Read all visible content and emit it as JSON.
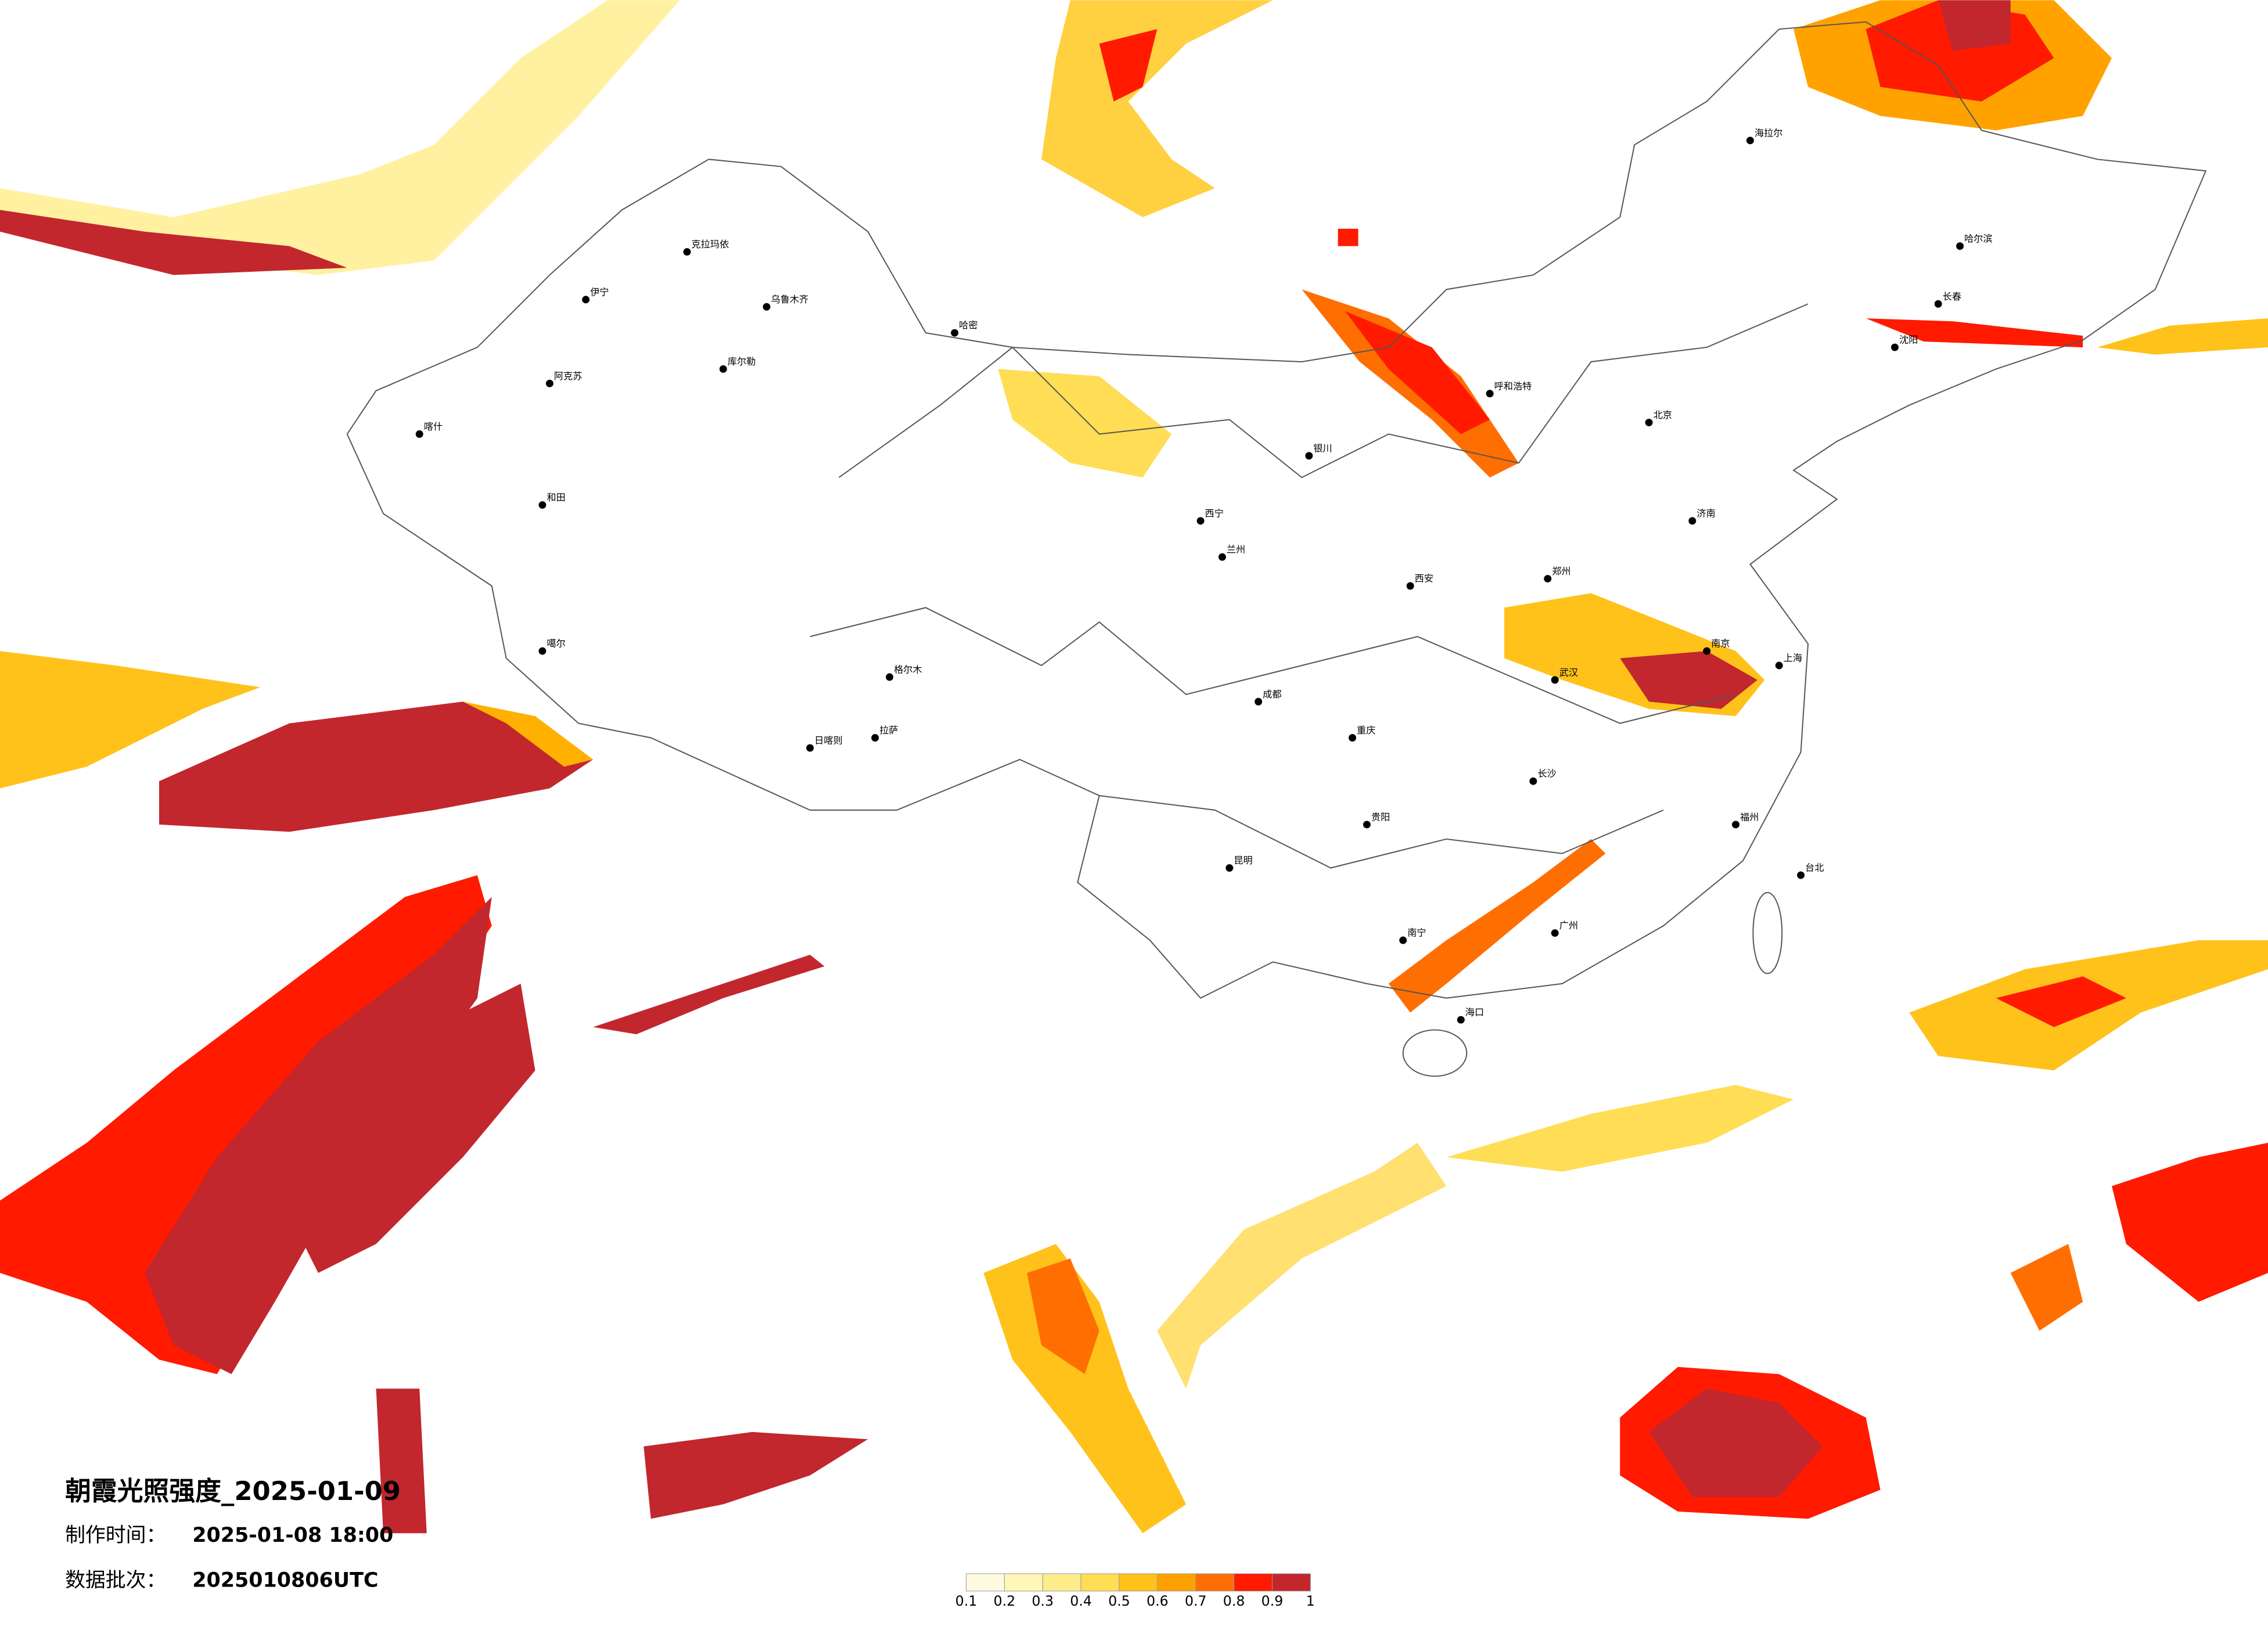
{
  "title": "朝霞光照强度_2025-01-09",
  "made_time": {
    "label": "制作时间：",
    "value": "2025-01-08 18:00"
  },
  "batch": {
    "label": "数据批次：",
    "value": "2025010806UTC"
  },
  "legend": {
    "ticks": [
      0.1,
      0.2,
      0.3,
      0.4,
      0.5,
      0.6,
      0.7,
      0.8,
      0.9,
      1
    ],
    "colors": [
      "#fffbe0",
      "#fff6b8",
      "#ffec8a",
      "#ffdd55",
      "#ffc21a",
      "#ffa200",
      "#ff6e00",
      "#ff1a00",
      "#c1272d"
    ]
  },
  "cities": [
    "乌鲁木齐",
    "克拉玛依",
    "伊宁",
    "阿克苏",
    "喀什",
    "和田",
    "哈密",
    "库尔勒",
    "噶尔",
    "日喀则",
    "拉萨",
    "格尔木",
    "西宁",
    "兰州",
    "银川",
    "呼和浩特",
    "北京",
    "哈尔滨",
    "长春",
    "沈阳",
    "济南",
    "郑州",
    "西安",
    "成都",
    "重庆",
    "武汉",
    "南京",
    "上海",
    "长沙",
    "昆明",
    "贵阳",
    "南宁",
    "广州",
    "福州",
    "海口",
    "台北",
    "海拉尔"
  ]
}
